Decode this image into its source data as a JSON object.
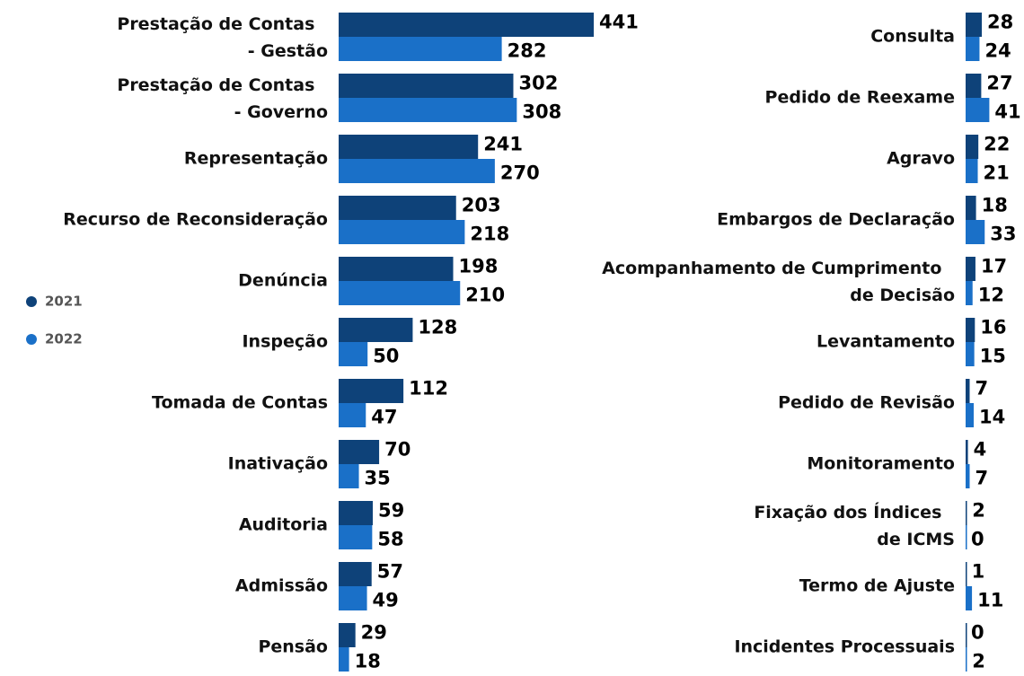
{
  "chart_data": {
    "type": "bar",
    "orientation": "horizontal",
    "categories": [
      "Prestação de Contas - Gestão",
      "Prestação de Contas - Governo",
      "Representação",
      "Recurso de Reconsideração",
      "Denúncia",
      "Inspeção",
      "Tomada de Contas",
      "Inativação",
      "Auditoria",
      "Admissão",
      "Pensão",
      "Consulta",
      "Pedido de Reexame",
      "Agravo",
      "Embargos de Declaração",
      "Acompanhamento de Cumprimento de Decisão",
      "Levantamento",
      "Pedido de Revisão",
      "Monitoramento",
      "Fixação dos Índices de ICMS",
      "Termo de Ajuste",
      "Incidentes Processuais"
    ],
    "series": [
      {
        "name": "2021",
        "color": "#0e4279",
        "values": [
          441,
          302,
          241,
          203,
          198,
          128,
          112,
          70,
          59,
          57,
          29,
          28,
          27,
          22,
          18,
          17,
          16,
          7,
          4,
          2,
          1,
          0
        ]
      },
      {
        "name": "2022",
        "color": "#1a70c8",
        "values": [
          282,
          308,
          270,
          218,
          210,
          50,
          47,
          35,
          58,
          49,
          18,
          24,
          41,
          21,
          33,
          12,
          15,
          14,
          7,
          0,
          11,
          2
        ]
      }
    ],
    "legend": "left"
  }
}
